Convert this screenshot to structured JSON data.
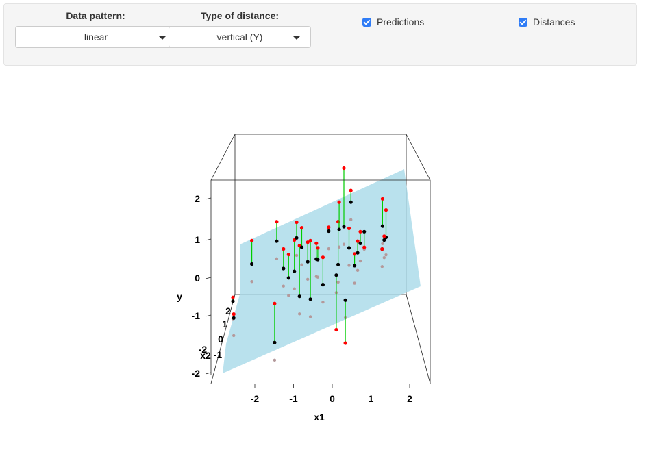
{
  "controls": {
    "data_pattern": {
      "label": "Data pattern:",
      "value": "linear"
    },
    "distance_type": {
      "label": "Type of distance:",
      "value": "vertical (Y)"
    },
    "predictions": {
      "label": "Predictions",
      "checked": true
    },
    "distances": {
      "label": "Distances",
      "checked": true
    }
  },
  "chart_data": {
    "type": "scatter",
    "subtype": "3d-regression-plane",
    "xlabel": "x1",
    "ylabel": "y",
    "zlabel": "x2",
    "x_ticks": [
      "-2",
      "-1",
      "0",
      "1",
      "2"
    ],
    "y_ticks": [
      "-2",
      "-1",
      "0",
      "1",
      "2"
    ],
    "x2_ticks": [
      "-2",
      "-1",
      "0",
      "1",
      "2"
    ],
    "colors": {
      "plane": "#a8dae8",
      "predicted_point": "#ff0000",
      "observed_point": "#000000",
      "residual_line": "#00cc00",
      "shadow_point": "#b4999b",
      "box": "#222222"
    },
    "points": [
      {
        "x1": -1.8,
        "x2": 0.3,
        "y": 0.3,
        "yhat": 0.9
      },
      {
        "x1": -1.3,
        "x2": -0.5,
        "y": -1.6,
        "yhat": -0.6
      },
      {
        "x1": -1.1,
        "x2": 0.9,
        "y": 0.8,
        "yhat": 1.3
      },
      {
        "x1": -1.0,
        "x2": 0.2,
        "y": 0.2,
        "yhat": 0.7
      },
      {
        "x1": -0.9,
        "x2": -0.1,
        "y": 0.0,
        "yhat": 0.6
      },
      {
        "x1": -0.7,
        "x2": 0.4,
        "y": 0.1,
        "yhat": 0.9
      },
      {
        "x1": -0.6,
        "x2": 0.1,
        "y": -0.5,
        "yhat": 0.8
      },
      {
        "x1": -0.6,
        "x2": 0.8,
        "y": 0.9,
        "yhat": 1.3
      },
      {
        "x1": -0.5,
        "x2": 0.5,
        "y": 0.7,
        "yhat": 1.2
      },
      {
        "x1": -0.4,
        "x2": 0.0,
        "y": 0.4,
        "yhat": 0.9
      },
      {
        "x1": -0.3,
        "x2": 0.3,
        "y": -0.6,
        "yhat": 0.9
      },
      {
        "x1": -0.2,
        "x2": -0.2,
        "y": 0.5,
        "yhat": 0.9
      },
      {
        "x1": -0.1,
        "x2": 0.4,
        "y": 0.4,
        "yhat": 0.7
      },
      {
        "x1": 0.0,
        "x2": 0.1,
        "y": -0.2,
        "yhat": 0.5
      },
      {
        "x1": 0.2,
        "x2": 0.6,
        "y": 1.1,
        "yhat": 1.2
      },
      {
        "x1": 0.3,
        "x2": -0.3,
        "y": 0.1,
        "yhat": -1.3
      },
      {
        "x1": 0.4,
        "x2": 0.2,
        "y": 0.3,
        "yhat": 1.4
      },
      {
        "x1": 0.5,
        "x2": -0.6,
        "y": -0.5,
        "yhat": -1.6
      },
      {
        "x1": 0.5,
        "x2": 0.9,
        "y": 1.1,
        "yhat": 1.8
      },
      {
        "x1": 0.6,
        "x2": 0.7,
        "y": 1.2,
        "yhat": 2.7
      },
      {
        "x1": 0.7,
        "x2": 0.4,
        "y": 0.7,
        "yhat": 1.2
      },
      {
        "x1": 0.8,
        "x2": 0.9,
        "y": 1.8,
        "yhat": 2.1
      },
      {
        "x1": 0.8,
        "x2": 0.0,
        "y": 0.3,
        "yhat": 0.6
      },
      {
        "x1": 0.9,
        "x2": 0.2,
        "y": 0.6,
        "yhat": 0.9
      },
      {
        "x1": 1.0,
        "x2": 0.5,
        "y": 0.8,
        "yhat": 1.1
      },
      {
        "x1": 1.1,
        "x2": 0.5,
        "y": 1.1,
        "yhat": 0.7
      },
      {
        "x1": 1.6,
        "x2": 0.9,
        "y": 0.6,
        "yhat": 0.6
      },
      {
        "x1": 1.6,
        "x2": 0.8,
        "y": 1.2,
        "yhat": 1.9
      },
      {
        "x1": 1.7,
        "x2": 0.9,
        "y": 0.9,
        "yhat": 1.6
      },
      {
        "x1": 1.6,
        "x2": 0.4,
        "y": 0.9,
        "yhat": 1.0
      },
      {
        "x1": -2.4,
        "x2": -0.8,
        "y": -0.5,
        "yhat": -0.4
      },
      {
        "x1": -2.4,
        "x2": -1.0,
        "y": -0.9,
        "yhat": -0.8
      }
    ]
  }
}
